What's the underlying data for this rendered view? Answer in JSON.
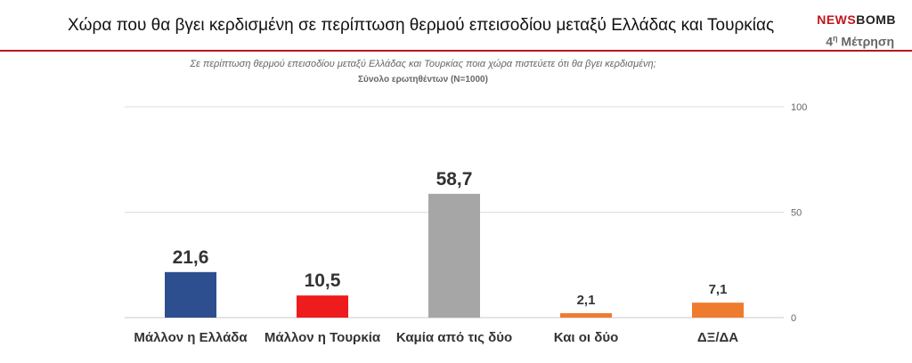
{
  "header": {
    "title": "Χώρα που θα βγει κερδισμένη σε περίπτωση θερμού επεισοδίου μεταξύ Ελλάδας και Τουρκίας",
    "brand_part1": "NEWS",
    "brand_part2": "BOMB",
    "measurement_num": "4",
    "measurement_sup": "η",
    "measurement_word": " Μέτρηση",
    "accent_color": "#b21a1f"
  },
  "chart_data": {
    "type": "bar",
    "title": "Σε περίπτωση θερμού επεισοδίου μεταξύ Ελλάδας και Τουρκίας ποια χώρα πιστεύετε ότι θα βγει κερδισμένη;",
    "subtitle": "Σύνολο ερωτηθέντων (Ν=1000)",
    "categories": [
      "Μάλλον η Ελλάδα",
      "Μάλλον η Τουρκία",
      "Καμία από τις δύο",
      "Και οι δύο",
      "ΔΞ/ΔΑ"
    ],
    "values": [
      21.6,
      10.5,
      58.7,
      2.1,
      7.1
    ],
    "value_labels": [
      "21,6",
      "10,5",
      "58,7",
      "2,1",
      "7,1"
    ],
    "colors": [
      "#2e4f8f",
      "#ee1c1c",
      "#a6a6a6",
      "#ee7b30",
      "#ee7b30"
    ],
    "yticks": [
      "0",
      "50",
      "100"
    ],
    "ylim": [
      0,
      100
    ],
    "grid": true,
    "legend": "none",
    "xlabel": "",
    "ylabel": ""
  }
}
